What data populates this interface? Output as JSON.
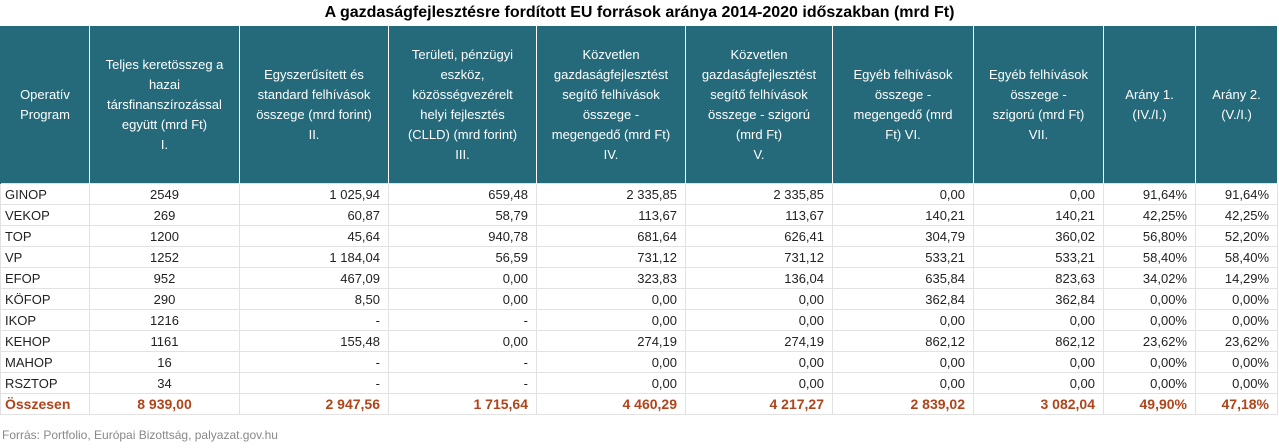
{
  "title": "A gazdaságfejlesztésre fordított EU források aránya 2014-2020 időszakban (mrd Ft)",
  "headers": [
    {
      "lines": [
        "Operatív",
        "Program"
      ]
    },
    {
      "lines": [
        "Teljes keretösszeg a",
        "hazai",
        "társfinanszírozással",
        "együtt (mrd Ft)",
        "I."
      ]
    },
    {
      "lines": [
        "Egyszerűsített és",
        "standard felhívások",
        "összege (mrd forint)",
        "II."
      ]
    },
    {
      "lines": [
        "Területi, pénzügyi",
        "eszköz,",
        "közösségvezérelt",
        "helyi fejlesztés",
        "(CLLD) (mrd forint)",
        "III."
      ]
    },
    {
      "lines": [
        "Közvetlen",
        "gazdaságfejlesztést",
        "segítő felhívások",
        "összege -",
        "megengedő (mrd Ft)",
        "IV."
      ]
    },
    {
      "lines": [
        "Közvetlen",
        "gazdaságfejlesztést",
        "segítő felhívások",
        "összege - szigorú",
        "(mrd Ft)",
        "V."
      ]
    },
    {
      "lines": [
        "Egyéb felhívások",
        "összege -",
        "megengedő (mrd",
        "Ft)      VI."
      ]
    },
    {
      "lines": [
        "Egyéb felhívások",
        "összege -",
        "szigorú (mrd Ft)",
        "VII."
      ]
    },
    {
      "lines": [
        "Arány 1.",
        "(IV./I.)"
      ]
    },
    {
      "lines": [
        "Arány 2.",
        "(V./I.)"
      ]
    }
  ],
  "rows": [
    {
      "program": "GINOP",
      "c1": "2549",
      "c2": "1 025,94",
      "c3": "659,48",
      "c4": "2 335,85",
      "c5": "2 335,85",
      "c6": "0,00",
      "c7": "0,00",
      "c8": "91,64%",
      "c9": "91,64%"
    },
    {
      "program": "VEKOP",
      "c1": "269",
      "c2": "60,87",
      "c3": "58,79",
      "c4": "113,67",
      "c5": "113,67",
      "c6": "140,21",
      "c7": "140,21",
      "c8": "42,25%",
      "c9": "42,25%"
    },
    {
      "program": "TOP",
      "c1": "1200",
      "c2": "45,64",
      "c3": "940,78",
      "c4": "681,64",
      "c5": "626,41",
      "c6": "304,79",
      "c7": "360,02",
      "c8": "56,80%",
      "c9": "52,20%"
    },
    {
      "program": "VP",
      "c1": "1252",
      "c2": "1 184,04",
      "c3": "56,59",
      "c4": "731,12",
      "c5": "731,12",
      "c6": "533,21",
      "c7": "533,21",
      "c8": "58,40%",
      "c9": "58,40%"
    },
    {
      "program": "EFOP",
      "c1": "952",
      "c2": "467,09",
      "c3": "0,00",
      "c4": "323,83",
      "c5": "136,04",
      "c6": "635,84",
      "c7": "823,63",
      "c8": "34,02%",
      "c9": "14,29%"
    },
    {
      "program": "KÖFOP",
      "c1": "290",
      "c2": "8,50",
      "c3": "0,00",
      "c4": "0,00",
      "c5": "0,00",
      "c6": "362,84",
      "c7": "362,84",
      "c8": "0,00%",
      "c9": "0,00%"
    },
    {
      "program": "IKOP",
      "c1": "1216",
      "c2": "-",
      "c3": "-",
      "c4": "0,00",
      "c5": "0,00",
      "c6": "0,00",
      "c7": "0,00",
      "c8": "0,00%",
      "c9": "0,00%"
    },
    {
      "program": "KEHOP",
      "c1": "1161",
      "c2": "155,48",
      "c3": "0,00",
      "c4": "274,19",
      "c5": "274,19",
      "c6": "862,12",
      "c7": "862,12",
      "c8": "23,62%",
      "c9": "23,62%"
    },
    {
      "program": "MAHOP",
      "c1": "16",
      "c2": "-",
      "c3": "-",
      "c4": "0,00",
      "c5": "0,00",
      "c6": "0,00",
      "c7": "0,00",
      "c8": "0,00%",
      "c9": "0,00%"
    },
    {
      "program": "RSZTOP",
      "c1": "34",
      "c2": "-",
      "c3": "-",
      "c4": "0,00",
      "c5": "0,00",
      "c6": "0,00",
      "c7": "0,00",
      "c8": "0,00%",
      "c9": "0,00%"
    }
  ],
  "total": {
    "program": "Összesen",
    "c1": "8 939,00",
    "c2": "2 947,56",
    "c3": "1 715,64",
    "c4": "4 460,29",
    "c5": "4 217,27",
    "c6": "2 839,02",
    "c7": "3 082,04",
    "c8": "49,90%",
    "c9": "47,18%"
  },
  "source": "Forrás: Portfolio, Európai Bizottság, palyazat.gov.hu",
  "colors": {
    "header_bg": "#246a7a",
    "total_text": "#b0441a"
  }
}
